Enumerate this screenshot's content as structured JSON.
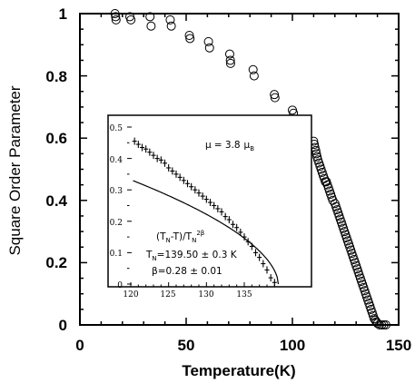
{
  "chart_data": [
    {
      "type": "scatter",
      "xlabel": "Temperature(K)",
      "ylabel": "Square Order Parameter",
      "xlim": [
        0,
        150
      ],
      "ylim": [
        0,
        1
      ],
      "xticks": [
        "0",
        "50",
        "100",
        "150"
      ],
      "yticks": [
        "0",
        "0.2",
        "0.4",
        "0.6",
        "0.8",
        "1"
      ],
      "grid": false,
      "series": [
        {
          "marker": "open-circle",
          "points": [
            [
              16.5,
              1.0
            ],
            [
              16.8,
              0.99
            ],
            [
              17.0,
              0.98
            ],
            [
              23.5,
              0.99
            ],
            [
              24.0,
              0.98
            ],
            [
              33.0,
              0.99
            ],
            [
              33.5,
              0.96
            ],
            [
              42.5,
              0.98
            ],
            [
              43.0,
              0.96
            ],
            [
              51.5,
              0.93
            ],
            [
              51.8,
              0.92
            ],
            [
              60.5,
              0.91
            ],
            [
              61.0,
              0.89
            ],
            [
              70.5,
              0.87
            ],
            [
              70.8,
              0.85
            ],
            [
              70.9,
              0.84
            ],
            [
              81.5,
              0.82
            ],
            [
              82.0,
              0.8
            ],
            [
              91.5,
              0.74
            ],
            [
              91.8,
              0.73
            ],
            [
              100.0,
              0.69
            ],
            [
              100.5,
              0.68
            ],
            [
              101.0,
              0.66
            ],
            [
              110.0,
              0.59
            ],
            [
              110.3,
              0.58
            ],
            [
              110.6,
              0.57
            ],
            [
              111.0,
              0.56
            ],
            [
              111.3,
              0.55
            ],
            [
              111.6,
              0.54
            ],
            [
              112.0,
              0.53
            ],
            [
              112.5,
              0.52
            ],
            [
              113.0,
              0.51
            ],
            [
              113.5,
              0.5
            ],
            [
              114.0,
              0.49
            ],
            [
              114.5,
              0.48
            ],
            [
              115.0,
              0.47
            ],
            [
              115.5,
              0.46
            ],
            [
              116.0,
              0.46
            ],
            [
              116.5,
              0.45
            ],
            [
              117.0,
              0.44
            ],
            [
              117.5,
              0.43
            ],
            [
              118.0,
              0.42
            ],
            [
              118.5,
              0.41
            ],
            [
              119.0,
              0.4
            ],
            [
              120.0,
              0.39
            ],
            [
              120.5,
              0.38
            ],
            [
              121.0,
              0.37
            ],
            [
              121.5,
              0.36
            ],
            [
              122.0,
              0.35
            ],
            [
              122.5,
              0.34
            ],
            [
              123.0,
              0.33
            ],
            [
              123.5,
              0.32
            ],
            [
              124.0,
              0.31
            ],
            [
              124.5,
              0.3
            ],
            [
              125.0,
              0.29
            ],
            [
              125.5,
              0.28
            ],
            [
              126.0,
              0.27
            ],
            [
              126.5,
              0.26
            ],
            [
              127.0,
              0.25
            ],
            [
              127.5,
              0.24
            ],
            [
              128.0,
              0.23
            ],
            [
              128.5,
              0.22
            ],
            [
              129.0,
              0.21
            ],
            [
              129.5,
              0.2
            ],
            [
              130.0,
              0.19
            ],
            [
              130.5,
              0.18
            ],
            [
              131.0,
              0.17
            ],
            [
              131.5,
              0.16
            ],
            [
              132.0,
              0.15
            ],
            [
              132.5,
              0.14
            ],
            [
              133.0,
              0.13
            ],
            [
              133.5,
              0.12
            ],
            [
              134.0,
              0.11
            ],
            [
              134.5,
              0.1
            ],
            [
              135.0,
              0.09
            ],
            [
              135.5,
              0.08
            ],
            [
              136.0,
              0.07
            ],
            [
              136.5,
              0.06
            ],
            [
              137.0,
              0.05
            ],
            [
              137.5,
              0.04
            ],
            [
              138.0,
              0.03
            ],
            [
              138.5,
              0.02
            ],
            [
              139.0,
              0.015
            ],
            [
              139.5,
              0.01
            ],
            [
              140.0,
              0.005
            ],
            [
              141.0,
              0.0
            ],
            [
              142.0,
              0.0
            ],
            [
              143.0,
              0.0
            ],
            [
              144.0,
              0.0
            ]
          ]
        }
      ]
    },
    {
      "type": "scatter",
      "inset": true,
      "xlim": [
        120,
        140
      ],
      "ylim": [
        0,
        0.5
      ],
      "xticks": [
        "120",
        "125",
        "130",
        "135"
      ],
      "yticks": [
        "0",
        "0.1",
        "0.2",
        "0.3",
        "0.4",
        "0.5"
      ],
      "series": [
        {
          "marker": "plus-with-error-bar",
          "points": [
            [
              120.5,
              0.455
            ],
            [
              121.0,
              0.445
            ],
            [
              121.5,
              0.435
            ],
            [
              122.0,
              0.43
            ],
            [
              122.5,
              0.42
            ],
            [
              123.0,
              0.41
            ],
            [
              123.5,
              0.4
            ],
            [
              124.0,
              0.395
            ],
            [
              124.5,
              0.385
            ],
            [
              125.0,
              0.37
            ],
            [
              125.5,
              0.36
            ],
            [
              126.0,
              0.35
            ],
            [
              126.5,
              0.34
            ],
            [
              127.0,
              0.33
            ],
            [
              127.5,
              0.32
            ],
            [
              128.0,
              0.31
            ],
            [
              128.5,
              0.3
            ],
            [
              129.0,
              0.29
            ],
            [
              129.5,
              0.28
            ],
            [
              130.0,
              0.27
            ],
            [
              130.5,
              0.26
            ],
            [
              131.0,
              0.25
            ],
            [
              131.5,
              0.24
            ],
            [
              132.0,
              0.23
            ],
            [
              132.5,
              0.215
            ],
            [
              133.0,
              0.205
            ],
            [
              133.5,
              0.19
            ],
            [
              134.0,
              0.18
            ],
            [
              134.5,
              0.165
            ],
            [
              135.0,
              0.15
            ],
            [
              135.5,
              0.135
            ],
            [
              136.0,
              0.12
            ],
            [
              136.5,
              0.1
            ],
            [
              137.0,
              0.085
            ],
            [
              137.5,
              0.065
            ],
            [
              138.0,
              0.045
            ],
            [
              138.5,
              0.02
            ],
            [
              139.0,
              0.005
            ]
          ]
        },
        {
          "type": "line",
          "fit": {
            "A": 1.0,
            "Tn": 139.5,
            "beta": 0.28
          },
          "x_start": 120.3,
          "x_end": 139.5
        }
      ],
      "annotations": {
        "mu_lhs": "μ",
        "mu_eq": "= 3.8",
        "mu_unit": "μ",
        "mu_sub": "B",
        "formula_a": "(T",
        "formula_sub_n": "N",
        "formula_b": "-T)/T",
        "formula_c": "N",
        "formula_sup": "2β",
        "tn_a": "T",
        "tn_sub": "N",
        "tn_b": "=139.50 ± 0.3 K",
        "beta_text": "β=0.28 ± 0.01"
      }
    }
  ]
}
